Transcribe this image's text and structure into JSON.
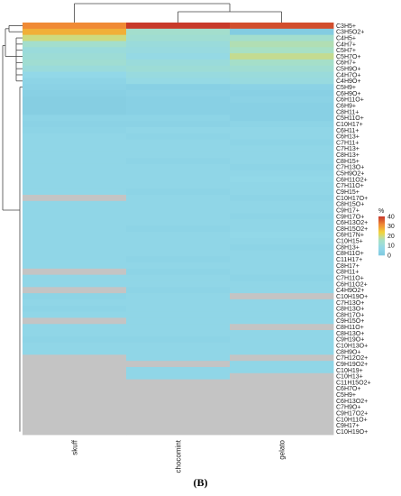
{
  "caption": "(B)",
  "chart_data": {
    "type": "heatmap",
    "columns": [
      "skuff",
      "chocomint",
      "gelato"
    ],
    "rows": [
      "C3H5+",
      "C3H5O2+",
      "C4H5+",
      "C4H7+",
      "C5H7+",
      "C5H7O+",
      "C6H7+",
      "C5H9O+",
      "C4H7O+",
      "C4H9O+",
      "C5H9+",
      "C6H9O+",
      "C6H11O+",
      "C6H9+",
      "C8H11+",
      "C5H11O+",
      "C10H17+",
      "C6H11+",
      "C6H13+",
      "C7H11+",
      "C7H13+",
      "C8H13+",
      "C8H15+",
      "C7H13O+",
      "C5H9O2+",
      "C6H11O2+",
      "C7H11O+",
      "C9H15+",
      "C10H17O+",
      "C8H15O+",
      "C9H17+",
      "C9H17O+",
      "C6H13O2+",
      "C8H15O2+",
      "C6H17N+",
      "C10H15+",
      "C8H13+",
      "C8H11O+",
      "C11H17+",
      "C8H17+",
      "C8H11+",
      "C7H11O+",
      "C6H11O2+",
      "C4H9O2+",
      "C10H19O+",
      "C7H13O+",
      "C8H13O+",
      "C8H17O+",
      "C9H15O+",
      "C8H11O+",
      "C8H13O+",
      "C9H19O+",
      "C10H13O+",
      "C8H9O+",
      "C7H12O2+",
      "C9H19O2+",
      "C10H19+",
      "C10H13+",
      "C11H15O2+",
      "C6H7O+",
      "C5H9+",
      "C6H13O2+",
      "C7H9O+",
      "C9H17O2+",
      "C10H11O+",
      "C9H17+",
      "C10H19O+"
    ],
    "values": [
      [
        32,
        41,
        38
      ],
      [
        28,
        14,
        2
      ],
      [
        20,
        13,
        14
      ],
      [
        14,
        11,
        17
      ],
      [
        11,
        10,
        16
      ],
      [
        12,
        9,
        19
      ],
      [
        13,
        11,
        15
      ],
      [
        11,
        12,
        13
      ],
      [
        8,
        10,
        11
      ],
      [
        6,
        9,
        10
      ],
      [
        5,
        4,
        5
      ],
      [
        4,
        5,
        4
      ],
      [
        3,
        4,
        5
      ],
      [
        3,
        4,
        4
      ],
      [
        3,
        4,
        4
      ],
      [
        6,
        6,
        4
      ],
      [
        5,
        5,
        6
      ],
      [
        6,
        7,
        7
      ],
      [
        7,
        6,
        7
      ],
      [
        7,
        7,
        6
      ],
      [
        7,
        7,
        7
      ],
      [
        7,
        7,
        7
      ],
      [
        7,
        6,
        7
      ],
      [
        7,
        7,
        6
      ],
      [
        7,
        7,
        7
      ],
      [
        7,
        7,
        8
      ],
      [
        7,
        7,
        7
      ],
      [
        7,
        6,
        7
      ],
      [
        -1,
        7,
        6
      ],
      [
        7,
        7,
        7
      ],
      [
        7,
        7,
        7
      ],
      [
        7,
        7,
        6
      ],
      [
        7,
        7,
        7
      ],
      [
        7,
        6,
        7
      ],
      [
        7,
        7,
        8
      ],
      [
        7,
        7,
        7
      ],
      [
        7,
        7,
        6
      ],
      [
        7,
        7,
        7
      ],
      [
        7,
        6,
        7
      ],
      [
        7,
        7,
        7
      ],
      [
        -1,
        6,
        7
      ],
      [
        7,
        7,
        6
      ],
      [
        7,
        7,
        7
      ],
      [
        -1,
        6,
        7
      ],
      [
        6,
        7,
        -1
      ],
      [
        7,
        7,
        7
      ],
      [
        6,
        7,
        7
      ],
      [
        7,
        7,
        7
      ],
      [
        -1,
        7,
        7
      ],
      [
        7,
        7,
        -1
      ],
      [
        7,
        7,
        7
      ],
      [
        6,
        6,
        7
      ],
      [
        7,
        7,
        7
      ],
      [
        7,
        7,
        7
      ],
      [
        -1,
        7,
        -1
      ],
      [
        -1,
        -1,
        7
      ],
      [
        -1,
        7,
        7
      ],
      [
        -1,
        7,
        -1
      ],
      [
        -1,
        -1,
        -1
      ],
      [
        -1,
        -1,
        -1
      ],
      [
        -1,
        -1,
        -1
      ],
      [
        -1,
        -1,
        -1
      ],
      [
        -1,
        -1,
        -1
      ],
      [
        -1,
        -1,
        -1
      ],
      [
        -1,
        -1,
        -1
      ],
      [
        -1,
        -1,
        -1
      ],
      [
        -1,
        -1,
        -1
      ]
    ],
    "legend": {
      "title": "%",
      "min": 0,
      "max": 40,
      "ticks": [
        0,
        10,
        20,
        30,
        40
      ],
      "placement": "right"
    },
    "colors": {
      "missing": "#c4c4c4",
      "scale": [
        "#7ec8df",
        "#92d8e8",
        "#a8e0c4",
        "#f2d33a",
        "#f08a35",
        "#c83a2a"
      ]
    }
  }
}
